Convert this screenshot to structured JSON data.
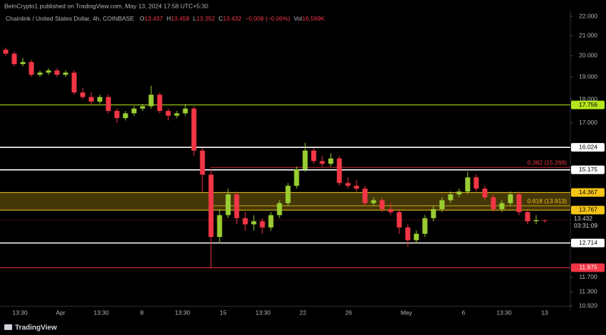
{
  "header": {
    "publisher": "BeInCrypto1 published on TradingView.com, May 13, 2024 17:58 UTC+5:30",
    "footer": "TradingView"
  },
  "chart_data": {
    "type": "candlestick",
    "title": "Chainlink / United States Dollar, 4h, COINBASE",
    "legend": [
      {
        "label": "O",
        "value": 13.437
      },
      {
        "label": "H",
        "value": 13.458
      },
      {
        "label": "L",
        "value": 13.352
      },
      {
        "label": "C",
        "value": 13.432
      }
    ],
    "change": "−0.008 (−0.06%)",
    "volume": {
      "label": "Vol",
      "value": "16.569K"
    },
    "up_color": "#9acd32",
    "down_color": "#f23645",
    "open": [
      20.3,
      20.1,
      19.6,
      19.7,
      19.1,
      19.2,
      19.3,
      19.1,
      19.2,
      18.3,
      18.1,
      17.9,
      18.1,
      17.5,
      17.2,
      17.4,
      17.6,
      17.7,
      18.2,
      17.5,
      17.3,
      17.4,
      17.6,
      15.9,
      15.0,
      12.9,
      13.6,
      14.3,
      13.5,
      13.3,
      13.4,
      13.2,
      13.6,
      14.0,
      14.6,
      15.2,
      15.9,
      15.5,
      15.4,
      15.6,
      14.7,
      14.6,
      14.5,
      14.0,
      14.1,
      13.8,
      13.7,
      13.2,
      12.8,
      13.0,
      13.5,
      13.8,
      14.1,
      14.3,
      14.4,
      14.9,
      14.5,
      14.2,
      13.8,
      14.0,
      14.3,
      13.7,
      13.4,
      13.437
    ],
    "high": [
      20.4,
      20.2,
      19.9,
      19.8,
      19.3,
      19.4,
      19.4,
      19.3,
      19.3,
      18.5,
      18.3,
      18.2,
      18.2,
      17.6,
      17.5,
      17.7,
      17.8,
      18.6,
      18.3,
      17.6,
      17.5,
      17.8,
      17.7,
      16.0,
      15.2,
      13.8,
      14.5,
      14.4,
      13.7,
      13.6,
      13.5,
      13.7,
      14.1,
      14.7,
      15.3,
      16.2,
      16.0,
      15.7,
      15.8,
      15.7,
      14.9,
      14.8,
      14.6,
      14.2,
      14.2,
      14.0,
      13.8,
      13.3,
      13.1,
      13.6,
      13.9,
      14.2,
      14.4,
      14.5,
      15.1,
      15.0,
      14.6,
      14.3,
      14.1,
      14.4,
      14.4,
      13.8,
      13.6,
      13.458
    ],
    "low": [
      20.0,
      19.5,
      19.5,
      19.0,
      19.0,
      19.1,
      19.0,
      19.0,
      18.2,
      18.0,
      17.8,
      17.8,
      17.4,
      17.0,
      17.1,
      17.3,
      17.5,
      17.6,
      17.4,
      17.1,
      17.2,
      17.3,
      15.7,
      14.4,
      11.975,
      12.7,
      13.5,
      13.3,
      13.1,
      13.1,
      13.0,
      13.1,
      13.5,
      13.9,
      14.5,
      15.1,
      15.4,
      15.3,
      15.3,
      14.6,
      14.5,
      14.4,
      13.9,
      13.9,
      13.7,
      13.6,
      13.0,
      12.6,
      12.7,
      12.9,
      13.4,
      13.7,
      14.0,
      14.2,
      14.3,
      14.4,
      14.1,
      13.7,
      13.7,
      13.9,
      13.6,
      13.3,
      13.3,
      13.352
    ],
    "close": [
      20.1,
      19.6,
      19.7,
      19.1,
      19.2,
      19.3,
      19.1,
      19.2,
      18.3,
      18.1,
      17.9,
      18.1,
      17.5,
      17.2,
      17.4,
      17.6,
      17.7,
      18.2,
      17.5,
      17.3,
      17.4,
      17.6,
      15.9,
      15.0,
      12.9,
      13.6,
      14.3,
      13.5,
      13.3,
      13.4,
      13.2,
      13.6,
      14.0,
      14.6,
      15.2,
      15.9,
      15.5,
      15.4,
      15.6,
      14.7,
      14.6,
      14.5,
      14.0,
      14.1,
      13.8,
      13.7,
      13.2,
      12.8,
      13.0,
      13.5,
      13.8,
      14.1,
      14.3,
      14.4,
      14.9,
      14.5,
      14.2,
      13.8,
      14.0,
      14.3,
      13.7,
      13.4,
      13.437,
      13.432
    ],
    "xticks": [
      "13:30",
      "Apr",
      "13:30",
      "8",
      "13:30",
      "15",
      "13:30",
      "22",
      "26",
      "May",
      "6",
      "13:30",
      "13"
    ],
    "ylim": [
      10.92,
      22
    ],
    "log_scale": true,
    "yticks": [
      {
        "value": 22,
        "label": "22.000"
      },
      {
        "value": 21,
        "label": "21.000"
      },
      {
        "value": 20,
        "label": "20.000"
      },
      {
        "value": 19,
        "label": "19.000"
      },
      {
        "value": 18,
        "label": "18.000"
      },
      {
        "value": 17,
        "label": "17.000"
      },
      {
        "value": 11.7,
        "label": "11.700"
      },
      {
        "value": 11.3,
        "label": "11.300"
      },
      {
        "value": 10.92,
        "label": "10.920"
      }
    ],
    "levels": [
      {
        "value": 17.756,
        "color": "#b5e61d"
      },
      {
        "value": 16.024,
        "color": "#ffffff"
      },
      {
        "value": 15.175,
        "color": "#ffffff"
      },
      {
        "value": 14.367,
        "color": "#f5c518"
      },
      {
        "value": 13.767,
        "color": "#f5c518"
      },
      {
        "value": 12.714,
        "color": "#ffffff"
      },
      {
        "value": 11.975,
        "color": "#f23645"
      }
    ],
    "fib": [
      {
        "label": "0.382 (15.269)",
        "value": 15.269,
        "color": "#f23645"
      },
      {
        "label": "0.618 (13.913)",
        "value": 13.913,
        "color": "#f5c518"
      }
    ],
    "last": {
      "value": 13.432,
      "countdown": "03:31:09"
    }
  }
}
